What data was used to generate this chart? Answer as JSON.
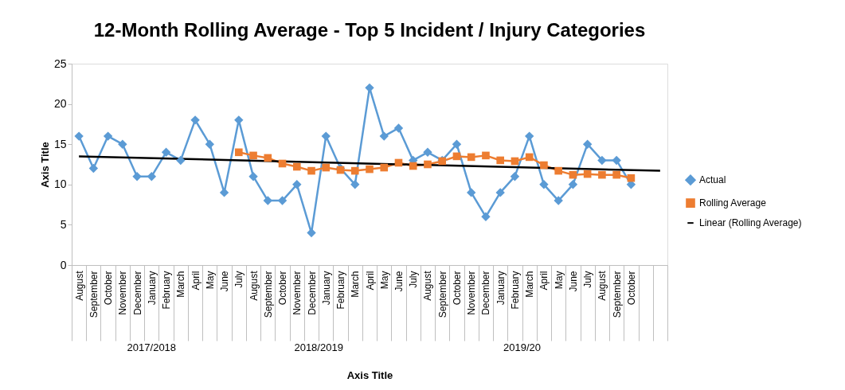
{
  "chart_data": {
    "type": "line",
    "title": "12-Month Rolling Average - Top 5 Incident / Injury Categories",
    "xlabel": "Axis Title",
    "ylabel": "Axis Title",
    "categories": [
      "August",
      "September",
      "October",
      "November",
      "December",
      "January",
      "February",
      "March",
      "April",
      "May",
      "June",
      "July",
      "August",
      "September",
      "October",
      "November",
      "December",
      "January",
      "February",
      "March",
      "April",
      "May",
      "June",
      "July",
      "August",
      "September",
      "October",
      "November",
      "December",
      "January",
      "February",
      "March",
      "April",
      "May",
      "June",
      "July",
      "August",
      "September",
      "October",
      null,
      null
    ],
    "series": [
      {
        "name": "Actual",
        "color": "#5b9bd5",
        "marker": "diamond",
        "values": [
          16,
          12,
          16,
          15,
          11,
          11,
          14,
          13,
          18,
          15,
          9,
          18,
          11,
          8,
          8,
          10,
          4,
          16,
          12,
          10,
          22,
          16,
          17,
          13,
          14,
          13,
          15,
          9,
          6,
          9,
          11,
          16,
          10,
          8,
          10,
          15,
          13,
          13,
          10,
          null,
          null
        ]
      },
      {
        "name": "Rolling Average",
        "color": "#ed7d31",
        "marker": "square",
        "values": [
          null,
          null,
          null,
          null,
          null,
          null,
          null,
          null,
          null,
          null,
          null,
          14.0,
          13.6,
          13.3,
          12.6,
          12.2,
          11.7,
          12.1,
          11.8,
          11.7,
          11.9,
          12.1,
          12.7,
          12.3,
          12.5,
          12.9,
          13.5,
          13.4,
          13.6,
          13.0,
          12.9,
          13.4,
          12.4,
          11.7,
          11.2,
          11.3,
          11.2,
          11.2,
          10.8,
          null,
          null
        ]
      },
      {
        "name": "Linear (Rolling Average)",
        "color": "#000000",
        "marker": "none",
        "type": "line",
        "values": [
          13.5,
          null,
          null,
          null,
          null,
          null,
          null,
          null,
          null,
          null,
          null,
          null,
          null,
          null,
          null,
          null,
          null,
          null,
          null,
          null,
          null,
          null,
          null,
          null,
          null,
          null,
          null,
          null,
          null,
          null,
          null,
          null,
          null,
          null,
          null,
          null,
          null,
          null,
          null,
          null,
          11.7
        ]
      }
    ],
    "ylim": [
      0,
      25
    ],
    "yticks": [
      0,
      5,
      10,
      15,
      20,
      25
    ],
    "grid": false,
    "legend": "right",
    "annotations": [
      "2017/2018",
      "2018/2019",
      "2019/20"
    ]
  }
}
